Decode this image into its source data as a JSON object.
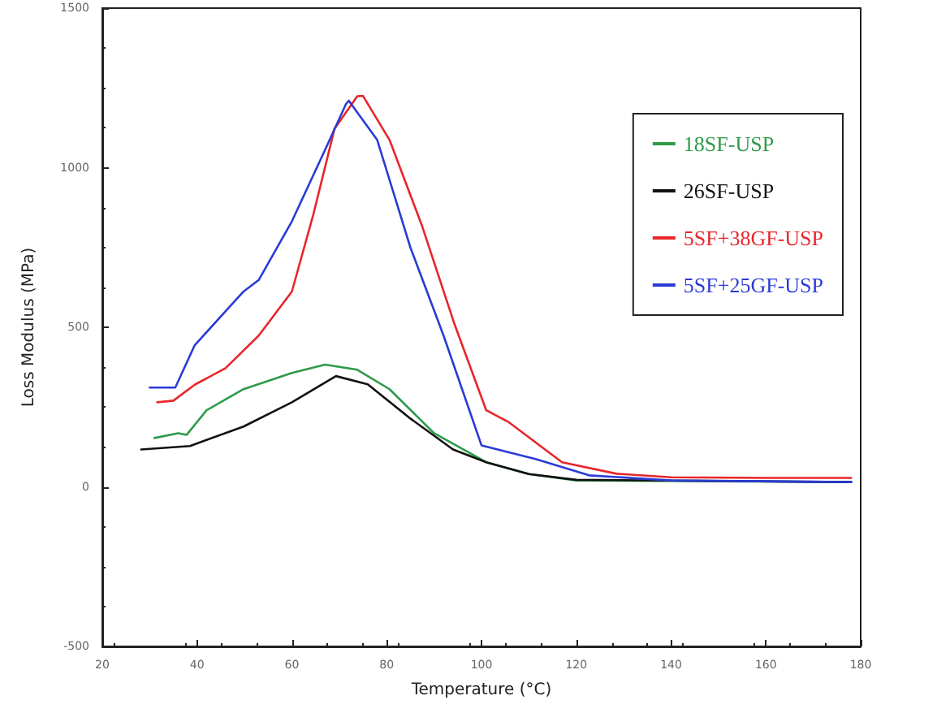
{
  "chart_data": {
    "type": "line",
    "xlabel": "Temperature (°C)",
    "ylabel": "Loss Modulus (MPa)",
    "xlim": [
      20,
      180
    ],
    "xticks": [
      20,
      40,
      60,
      80,
      100,
      120,
      140,
      160,
      180
    ],
    "ylim": [
      -500,
      1500
    ],
    "yticks": [
      -500,
      0,
      500,
      1000,
      1500
    ],
    "grid": false,
    "legend": "top right",
    "marker": "none",
    "line_style": "solid",
    "series": [
      {
        "name": "18SF-USP",
        "color": "#2e9a4a",
        "x": [
          31,
          36,
          37.8,
          42,
          49.8,
          60,
          67,
          73.8,
          80.6,
          90,
          101,
          110,
          120,
          178
        ],
        "values": [
          153,
          168,
          163,
          240,
          306,
          357,
          383,
          367,
          306,
          168,
          77,
          40,
          20,
          15
        ]
      },
      {
        "name": "26SF-USP",
        "color": "#111111",
        "x": [
          28.2,
          38.5,
          49.8,
          60,
          69.3,
          76,
          85,
          94,
          101,
          110,
          120,
          178
        ],
        "values": [
          117,
          128,
          189,
          265,
          347,
          321,
          214,
          117,
          77,
          40,
          22,
          15
        ]
      },
      {
        "name": "5SF+38GF-USP",
        "color": "#e8262a",
        "x": [
          31.6,
          35,
          39.5,
          46,
          53,
          60,
          64.5,
          69,
          73.8,
          75,
          80.6,
          87.5,
          94.3,
          101,
          105.6,
          117,
          128.5,
          140,
          160,
          178
        ],
        "values": [
          265,
          270,
          320,
          372,
          474,
          612,
          852,
          1122,
          1224,
          1225,
          1087,
          816,
          510,
          240,
          204,
          77,
          41,
          30,
          28,
          28
        ]
      },
      {
        "name": "5SF+25GF-USP",
        "color": "#2b3bd6",
        "x": [
          30,
          35.4,
          39.5,
          49.8,
          53,
          60,
          67,
          71.4,
          72,
          78,
          85,
          92,
          100,
          111.4,
          122.7,
          140,
          178
        ],
        "values": [
          311,
          311,
          444,
          612,
          648,
          832,
          1056,
          1199,
          1210,
          1087,
          750,
          474,
          130,
          87,
          36,
          20,
          15
        ]
      }
    ]
  }
}
